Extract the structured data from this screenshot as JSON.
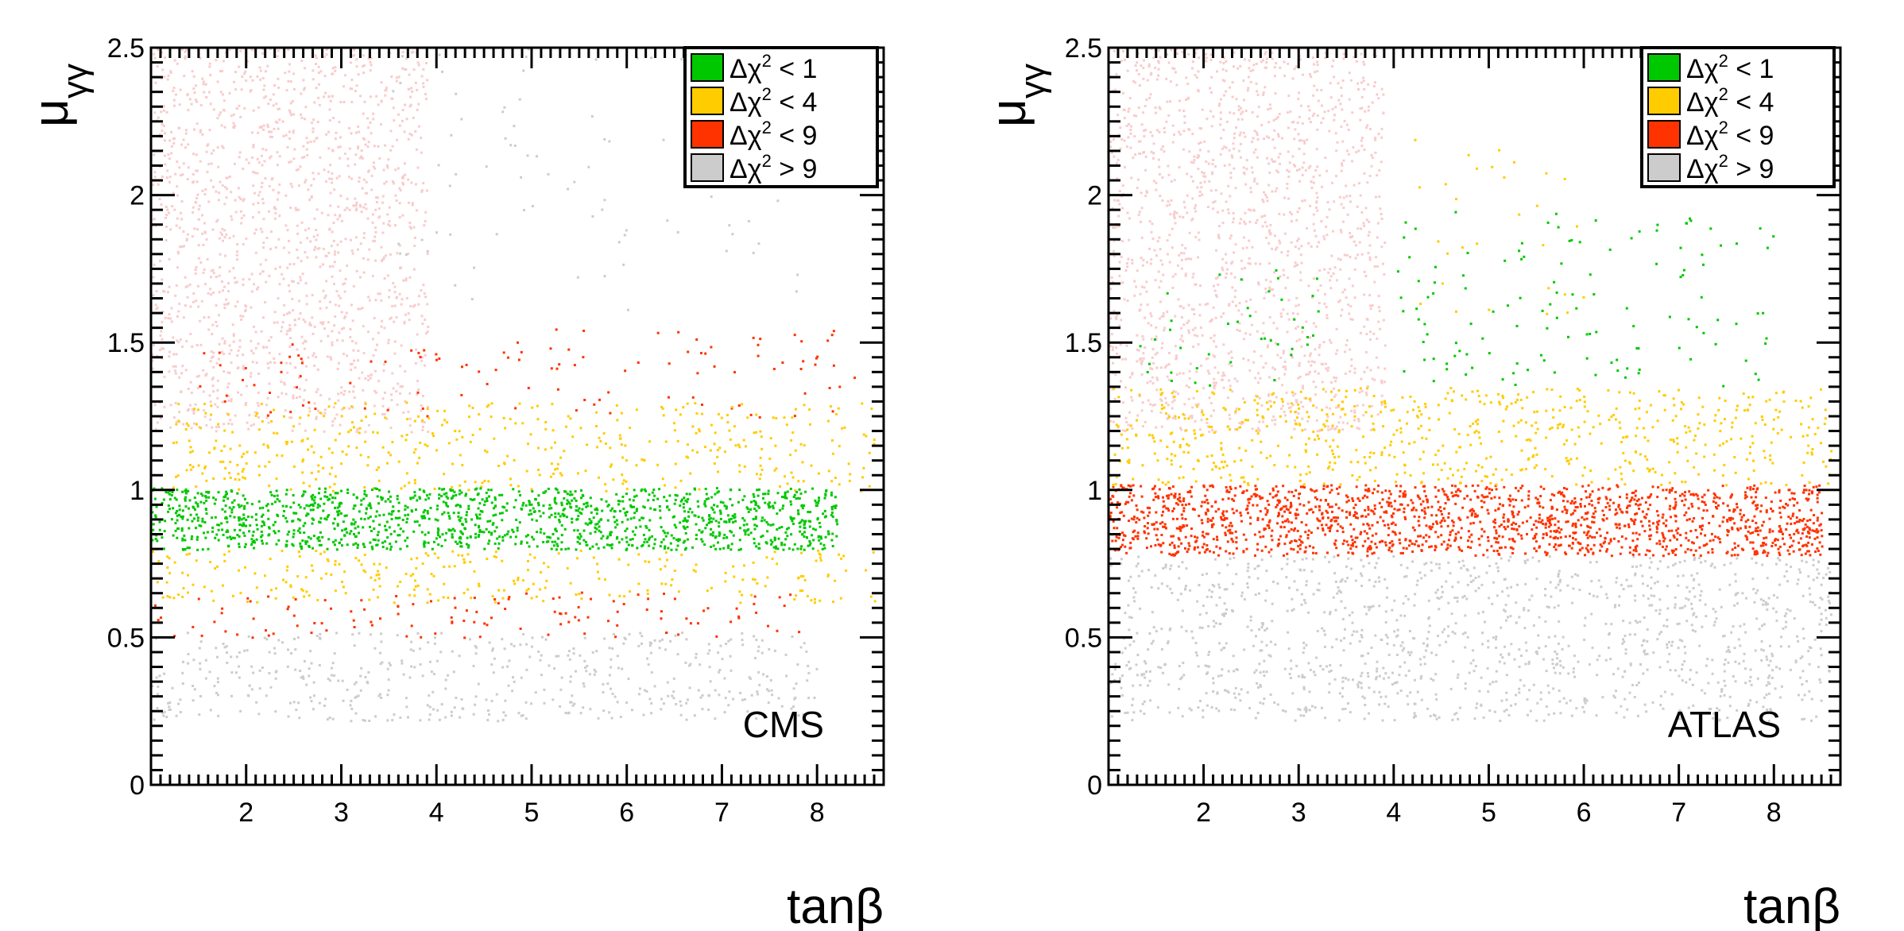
{
  "chart_data": [
    {
      "type": "scatter",
      "title": "",
      "experiment_label": "CMS",
      "xlabel": "tanβ",
      "ylabel": "μγγ",
      "ylabel_main": "μ",
      "ylabel_sub": "γγ",
      "xlim": [
        1.0,
        8.7
      ],
      "ylim": [
        0,
        2.5
      ],
      "xticks": [
        2,
        3,
        4,
        5,
        6,
        7,
        8
      ],
      "yticks": [
        0,
        0.5,
        1,
        1.5,
        2,
        2.5
      ],
      "ytick_labels": [
        "0",
        "0.5",
        "1",
        "1.5",
        "2",
        "2.5"
      ],
      "legend_position": "top-right",
      "legend": [
        {
          "symbol": "Δχ",
          "sup": "2",
          "rel": " < 1",
          "color": "#00c800"
        },
        {
          "symbol": "Δχ",
          "sup": "2",
          "rel": " < 4",
          "color": "#ffcc00"
        },
        {
          "symbol": "Δχ",
          "sup": "2",
          "rel": " < 9",
          "color": "#ff3300"
        },
        {
          "symbol": "Δχ",
          "sup": "2",
          "rel": " > 9",
          "color": "#cccccc"
        }
      ],
      "background_color": "#f8cccc",
      "regions": [
        {
          "class": "background",
          "color": "#f8cccc",
          "x": [
            1.0,
            3.9
          ],
          "y": [
            1.2,
            2.5
          ],
          "density": 0.9
        },
        {
          "class": "Δχ² > 9",
          "color": "#cccccc",
          "x": [
            1.0,
            8.0
          ],
          "y": [
            0.22,
            0.52
          ],
          "density": 0.55
        },
        {
          "class": "Δχ² > 9",
          "color": "#cccccc",
          "x": [
            3.5,
            8.0
          ],
          "y": [
            1.6,
            2.5
          ],
          "density": 0.05
        },
        {
          "class": "Δχ² < 9",
          "color": "#ff3300",
          "x": [
            1.0,
            7.8
          ],
          "y": [
            0.5,
            0.66
          ],
          "density": 0.25
        },
        {
          "class": "Δχ² < 9",
          "color": "#ff3300",
          "x": [
            1.5,
            8.5
          ],
          "y": [
            1.25,
            1.55
          ],
          "density": 0.12
        },
        {
          "class": "Δχ² < 4",
          "color": "#ffcc00",
          "x": [
            1.0,
            8.6
          ],
          "y": [
            0.62,
            0.8
          ],
          "density": 0.45
        },
        {
          "class": "Δχ² < 4",
          "color": "#ffcc00",
          "x": [
            1.2,
            8.6
          ],
          "y": [
            1.0,
            1.3
          ],
          "density": 0.45
        },
        {
          "class": "Δχ² < 1",
          "color": "#00c800",
          "x": [
            1.0,
            8.2
          ],
          "y": [
            0.8,
            1.01
          ],
          "density": 2.2
        }
      ]
    },
    {
      "type": "scatter",
      "title": "",
      "experiment_label": "ATLAS",
      "xlabel": "tanβ",
      "ylabel": "μγγ",
      "ylabel_main": "μ",
      "ylabel_sub": "γγ",
      "xlim": [
        1.0,
        8.7
      ],
      "ylim": [
        0,
        2.5
      ],
      "xticks": [
        2,
        3,
        4,
        5,
        6,
        7,
        8
      ],
      "yticks": [
        0,
        0.5,
        1,
        1.5,
        2,
        2.5
      ],
      "ytick_labels": [
        "0",
        "0.5",
        "1",
        "1.5",
        "2",
        "2.5"
      ],
      "legend_position": "top-right",
      "legend": [
        {
          "symbol": "Δχ",
          "sup": "2",
          "rel": " < 1",
          "color": "#00c800"
        },
        {
          "symbol": "Δχ",
          "sup": "2",
          "rel": " < 4",
          "color": "#ffcc00"
        },
        {
          "symbol": "Δχ",
          "sup": "2",
          "rel": " < 9",
          "color": "#ff3300"
        },
        {
          "symbol": "Δχ",
          "sup": "2",
          "rel": " > 9",
          "color": "#cccccc"
        }
      ],
      "background_color": "#f8cccc",
      "regions": [
        {
          "class": "background",
          "color": "#f8cccc",
          "x": [
            1.0,
            3.9
          ],
          "y": [
            1.2,
            2.5
          ],
          "density": 0.9
        },
        {
          "class": "Δχ² > 9",
          "color": "#cccccc",
          "x": [
            1.0,
            8.6
          ],
          "y": [
            0.22,
            0.78
          ],
          "density": 0.7
        },
        {
          "class": "Δχ² < 9",
          "color": "#ff3300",
          "x": [
            1.0,
            8.5
          ],
          "y": [
            0.78,
            1.02
          ],
          "density": 2.2
        },
        {
          "class": "Δχ² < 4",
          "color": "#ffcc00",
          "x": [
            1.0,
            8.6
          ],
          "y": [
            1.02,
            1.35
          ],
          "density": 0.6
        },
        {
          "class": "Δχ² < 4",
          "color": "#ffcc00",
          "x": [
            4.2,
            6.0
          ],
          "y": [
            1.6,
            2.2
          ],
          "density": 0.06
        },
        {
          "class": "Δχ² < 1",
          "color": "#00c800",
          "x": [
            4.0,
            8.0
          ],
          "y": [
            1.35,
            1.95
          ],
          "density": 0.12
        },
        {
          "class": "Δχ² < 1",
          "color": "#00c800",
          "x": [
            1.3,
            3.2
          ],
          "y": [
            1.35,
            1.75
          ],
          "density": 0.12
        }
      ]
    }
  ]
}
